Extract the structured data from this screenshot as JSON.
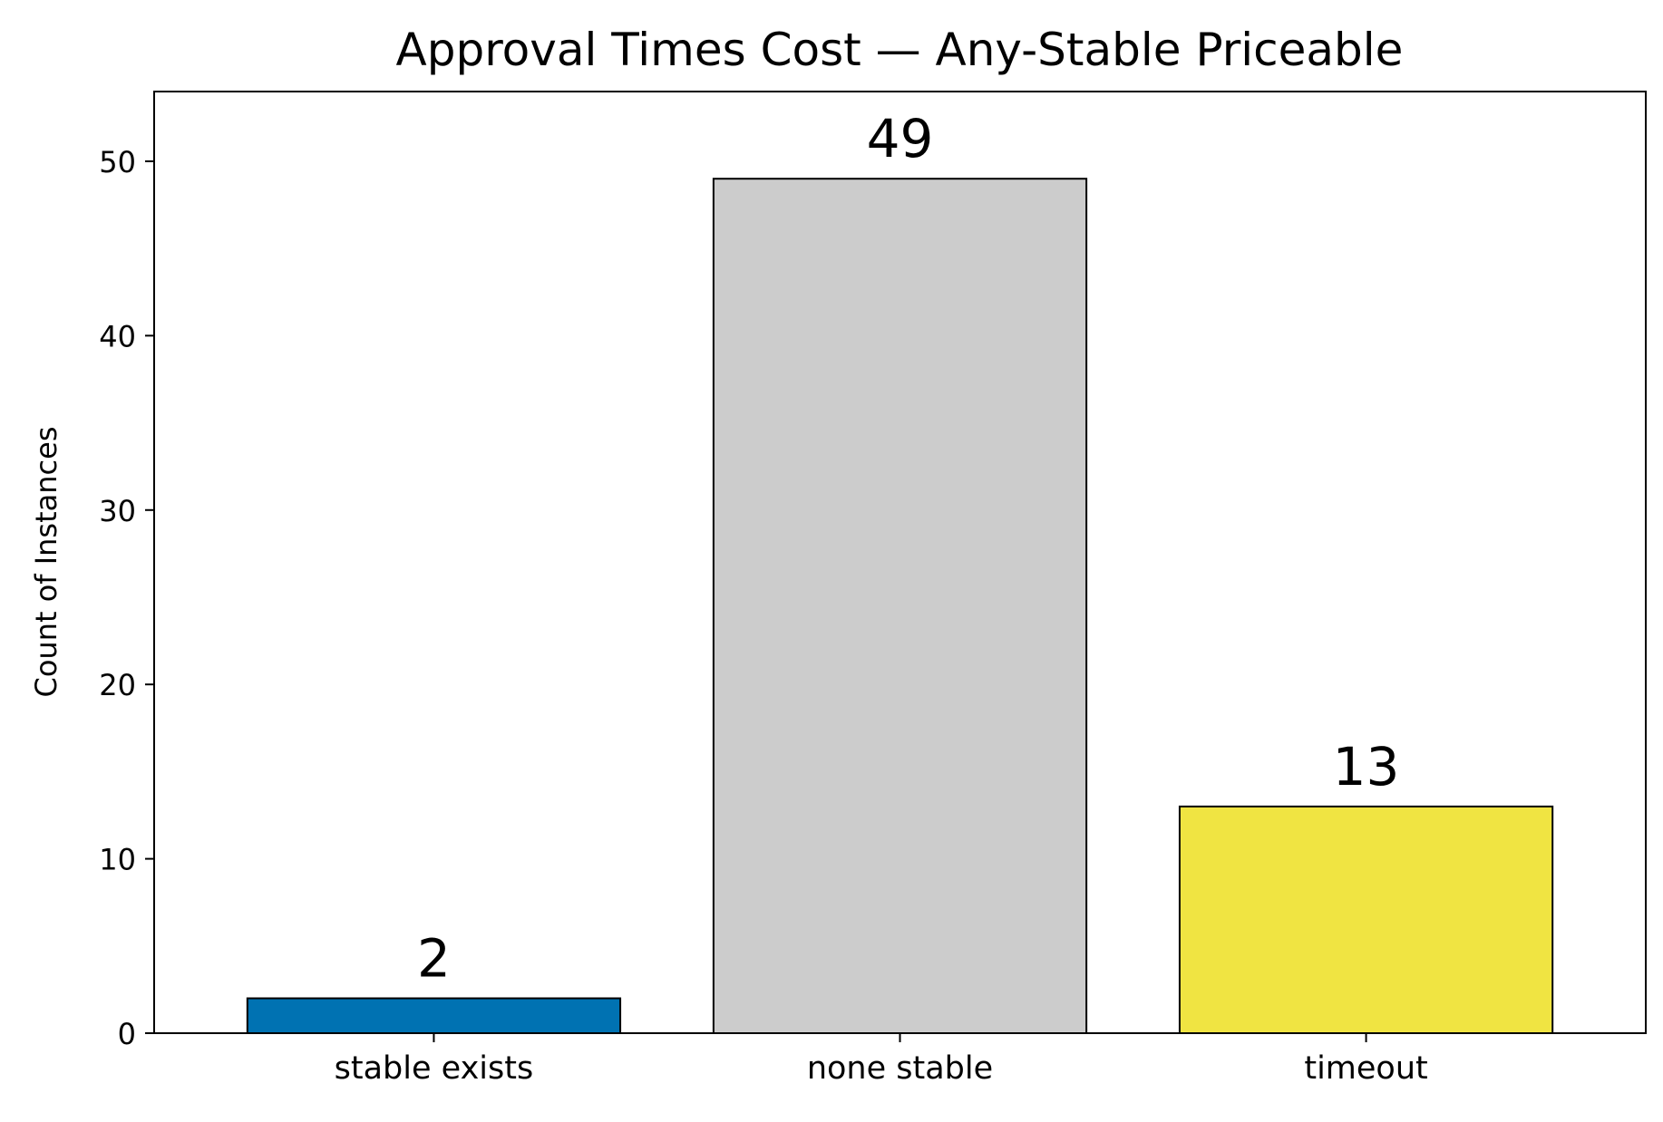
{
  "chart_data": {
    "type": "bar",
    "title": "Approval Times Cost — Any-Stable Priceable",
    "xlabel": "",
    "ylabel": "Count of Instances",
    "categories": [
      "stable exists",
      "none stable",
      "timeout"
    ],
    "values": [
      2,
      49,
      13
    ],
    "data_labels": [
      "2",
      "49",
      "13"
    ],
    "colors": [
      "#0072b2",
      "#cccccc",
      "#f0e442"
    ],
    "ylim": [
      0,
      54
    ],
    "yticks": [
      0,
      10,
      20,
      30,
      40,
      50
    ],
    "grid": false,
    "legend": "none"
  }
}
